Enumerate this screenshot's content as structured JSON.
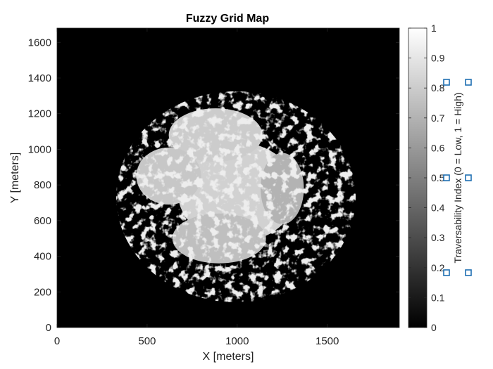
{
  "chart_data": {
    "type": "heatmap",
    "title": "Fuzzy Grid Map",
    "xlabel": "X [meters]",
    "ylabel": "Y [meters]",
    "xlim": [
      0,
      1900
    ],
    "ylim": [
      0,
      1680
    ],
    "xticks": [
      0,
      500,
      1000,
      1500
    ],
    "yticks": [
      0,
      200,
      400,
      600,
      800,
      1000,
      1200,
      1400,
      1600
    ],
    "colormap": "gray",
    "background_color": "#000000",
    "clim": [
      0,
      1
    ],
    "colorbar": {
      "label": "Traversability Index (0 = Low, 1 = High)",
      "ticks": [
        0,
        0.1,
        0.2,
        0.3,
        0.4,
        0.5,
        0.6,
        0.7,
        0.8,
        0.9,
        1
      ],
      "tick_labels": [
        "0",
        "0.1",
        "0.2",
        "0.3",
        "0.4",
        "0.5",
        "0.6",
        "0.7",
        "0.8",
        "0.9",
        "1"
      ]
    },
    "regions": [
      {
        "name": "main-blob",
        "cx": 1000,
        "cy": 760,
        "rx": 330,
        "ry": 280,
        "value": 0.82
      },
      {
        "name": "upper-lobe",
        "cx": 880,
        "cy": 1080,
        "rx": 260,
        "ry": 150,
        "value": 0.8
      },
      {
        "name": "left-lobe",
        "cx": 620,
        "cy": 850,
        "rx": 180,
        "ry": 160,
        "value": 0.78
      },
      {
        "name": "right-lobe",
        "cx": 1250,
        "cy": 780,
        "rx": 120,
        "ry": 200,
        "value": 0.7
      },
      {
        "name": "lower-lobe",
        "cx": 900,
        "cy": 500,
        "rx": 260,
        "ry": 140,
        "value": 0.75
      }
    ]
  }
}
